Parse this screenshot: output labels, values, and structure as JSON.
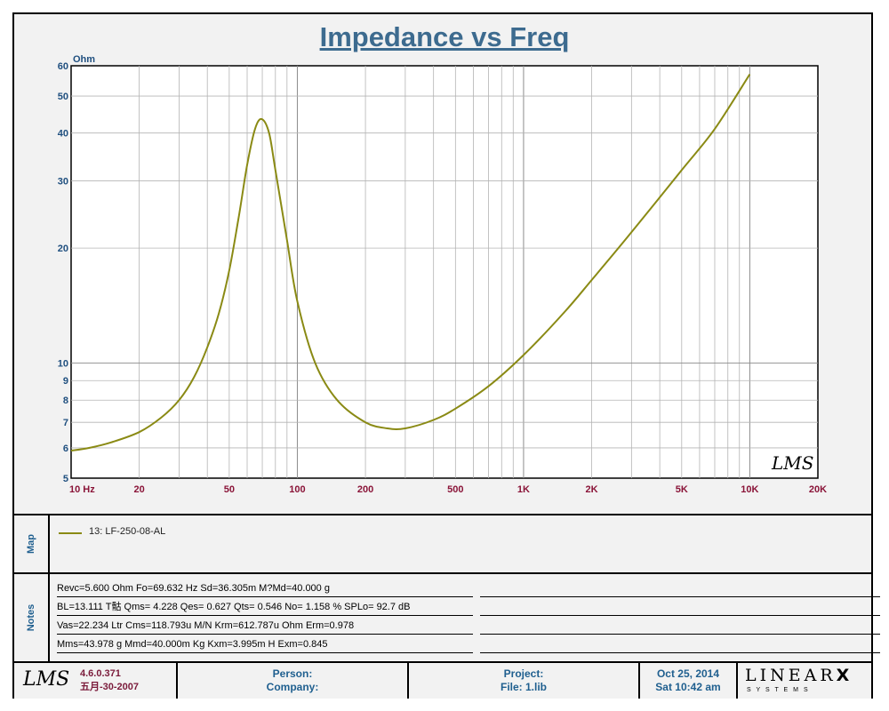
{
  "chart_data": {
    "type": "line",
    "title": "Impedance vs Freq",
    "ylabel": "Ohm",
    "xlabel": "",
    "x_scale": "log",
    "y_scale": "log",
    "xlim": [
      10,
      20000
    ],
    "ylim": [
      5,
      60
    ],
    "x_tick_labels": [
      {
        "value": 10,
        "label": "10  Hz"
      },
      {
        "value": 20,
        "label": "20"
      },
      {
        "value": 50,
        "label": "50"
      },
      {
        "value": 100,
        "label": "100"
      },
      {
        "value": 200,
        "label": "200"
      },
      {
        "value": 500,
        "label": "500"
      },
      {
        "value": 1000,
        "label": "1K"
      },
      {
        "value": 2000,
        "label": "2K"
      },
      {
        "value": 5000,
        "label": "5K"
      },
      {
        "value": 10000,
        "label": "10K"
      },
      {
        "value": 20000,
        "label": "20K"
      }
    ],
    "y_tick_labels": [
      {
        "value": 60,
        "label": "60"
      },
      {
        "value": 50,
        "label": "50"
      },
      {
        "value": 40,
        "label": "40"
      },
      {
        "value": 30,
        "label": "30"
      },
      {
        "value": 20,
        "label": "20"
      },
      {
        "value": 10,
        "label": "10"
      },
      {
        "value": 9,
        "label": "9"
      },
      {
        "value": 8,
        "label": "8"
      },
      {
        "value": 7,
        "label": "7"
      },
      {
        "value": 6,
        "label": "6"
      },
      {
        "value": 5,
        "label": "5"
      }
    ],
    "grid": true,
    "series": [
      {
        "name": "13: LF-250-08-AL",
        "color": "#8a8a14",
        "x": [
          10,
          12,
          15,
          20,
          25,
          30,
          35,
          40,
          45,
          50,
          55,
          60,
          65,
          69.6,
          75,
          80,
          90,
          100,
          120,
          150,
          200,
          250,
          300,
          400,
          500,
          700,
          1000,
          1500,
          2000,
          3000,
          5000,
          7000,
          10000
        ],
        "y": [
          5.9,
          6.0,
          6.2,
          6.6,
          7.2,
          8.0,
          9.2,
          11.0,
          13.5,
          17.5,
          24.0,
          33.0,
          41.0,
          43.5,
          40.0,
          32.0,
          21.0,
          14.5,
          10.0,
          8.0,
          7.0,
          6.75,
          6.75,
          7.1,
          7.6,
          8.7,
          10.5,
          13.5,
          16.5,
          22.0,
          32.0,
          41.0,
          57.0
        ]
      }
    ],
    "watermark": "LMS"
  },
  "map": {
    "label": "Map",
    "legend": "13: LF-250-08-AL"
  },
  "notes": {
    "label": "Notes",
    "rows": [
      "Revc=5.600 Ohm  Fo=69.632 Hz  Sd=36.305m M?Md=40.000 g",
      "BL=13.111 T骷  Qms= 4.228  Qes= 0.627  Qts= 0.546  No= 1.158 %  SPLo= 92.7 dB",
      "Vas=22.234 Ltr  Cms=118.793u M/N  Krm=612.787u Ohm  Erm=0.978",
      "Mms=43.978 g  Mmd=40.000m Kg  Kxm=3.995m H  Exm=0.845"
    ]
  },
  "footer": {
    "logo": "LMS",
    "version": "4.6.0.371",
    "version_date": "五月-30-2007",
    "person": "Person:",
    "company": "Company:",
    "project": "Project:",
    "file": "File: 1.lib",
    "date": "Oct 25, 2014",
    "time": "Sat 10:42 am",
    "brand_main": "LINEAR",
    "brand_x": "X",
    "brand_sub": "S Y S T E M S"
  }
}
